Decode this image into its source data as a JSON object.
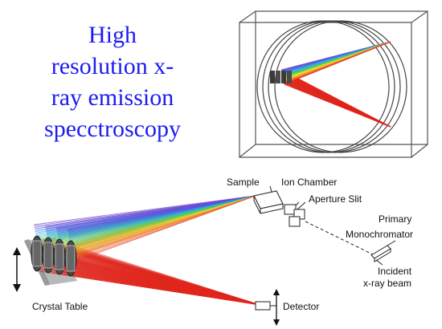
{
  "title_lines": [
    "High",
    "resolution x-",
    "ray emission",
    "specctroscopy"
  ],
  "labels": {
    "sample": "Sample",
    "ion_chamber": "Ion Chamber",
    "aperture_slit": "Aperture Slit",
    "primary": "Primary",
    "monochromator": "Monochromator",
    "incident": "Incident",
    "xray_beam": "x-ray beam",
    "crystal_table": "Crystal Table",
    "detector": "Detector"
  },
  "colors": {
    "title": "#1c1cf2",
    "fan_red": "#e0261c",
    "fan_spectrum": [
      "#7a3fd0",
      "#3f6fe0",
      "#2fb5e8",
      "#45c64a",
      "#e8e23a",
      "#f39a2a",
      "#e23224"
    ]
  }
}
